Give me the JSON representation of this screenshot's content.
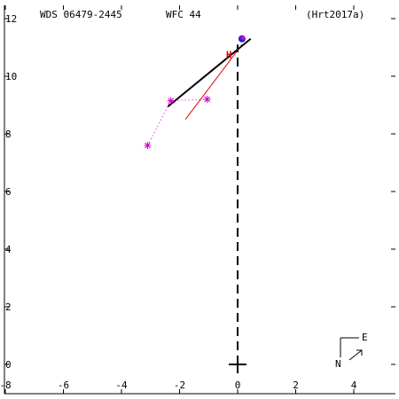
{
  "header": {
    "system": "WDS 06479-2445",
    "filter": "WFC  44",
    "reference": "(Hrt2017a)"
  },
  "compass": {
    "east": "E",
    "north": "N"
  },
  "colors": {
    "axes": "#000000",
    "magenta": "#cc00cc",
    "red": "#dd0000",
    "blue": "#2222cc",
    "black": "#000000"
  },
  "chart_data": {
    "type": "scatter",
    "xlim": [
      -8,
      5.5
    ],
    "ylim": [
      -1,
      12.5
    ],
    "x_ticks": [
      -8,
      -6,
      -4,
      -2,
      0,
      2,
      4
    ],
    "x_tick_labels": [
      "-8",
      "-6",
      "-4",
      "-2",
      "0",
      "2",
      "4"
    ],
    "y_ticks": [
      0,
      2,
      4,
      6,
      8,
      10,
      12
    ],
    "y_tick_labels": [
      "0",
      "2",
      "4",
      "6",
      "8",
      "10",
      "12"
    ],
    "origin_marker": [
      0,
      0
    ],
    "dashed_line": {
      "from": [
        0,
        0
      ],
      "to": [
        0,
        11.1
      ]
    },
    "black_line": {
      "from": [
        -2.4,
        8.95
      ],
      "to": [
        0.45,
        11.3
      ]
    },
    "red_line": {
      "from": [
        -1.8,
        8.5
      ],
      "to": [
        0.15,
        11.1
      ]
    },
    "magenta_points": [
      {
        "x": -3.1,
        "y": 7.6
      },
      {
        "x": -2.3,
        "y": 9.15
      },
      {
        "x": -1.05,
        "y": 9.2
      }
    ],
    "magenta_dotted": [
      {
        "from": [
          -3.1,
          7.6
        ],
        "to": [
          -2.3,
          9.15
        ]
      },
      {
        "from": [
          -2.3,
          9.15
        ],
        "to": [
          -1.05,
          9.2
        ]
      }
    ],
    "blue_point": {
      "x": 0.15,
      "y": 11.3
    },
    "red_marker": {
      "x": -0.3,
      "y": 10.75,
      "label": "H"
    }
  }
}
